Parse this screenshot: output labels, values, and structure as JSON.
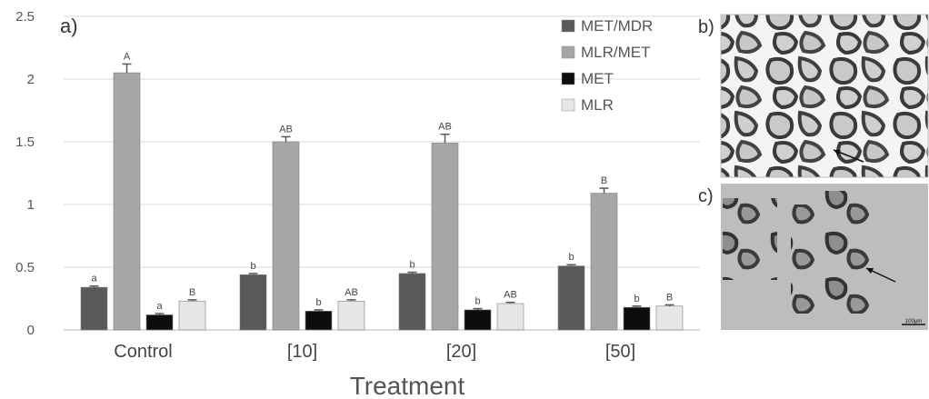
{
  "panels": {
    "a": "a)",
    "b": "b)",
    "c": "c)"
  },
  "micrograph": {
    "scale_bar": "100µm"
  },
  "chart_data": {
    "type": "bar",
    "title": "",
    "xlabel": "Treatment",
    "ylabel": "",
    "ylim": [
      0,
      2.5
    ],
    "yticks": [
      0,
      0.5,
      1,
      1.5,
      2,
      2.5
    ],
    "ytick_labels": [
      "0",
      "0.5",
      "1",
      "1.5",
      "2",
      "2.5"
    ],
    "grid": true,
    "legend_position": "top-right",
    "categories": [
      "Control",
      "[10]",
      "[20]",
      "[50]"
    ],
    "series": [
      {
        "name": "MET/MDR",
        "color": "#595959",
        "values": [
          0.34,
          0.44,
          0.45,
          0.51
        ],
        "errors": [
          0.01,
          0.01,
          0.01,
          0.01
        ],
        "sig": [
          "a",
          "b",
          "b",
          "b"
        ]
      },
      {
        "name": "MLR/MET",
        "color": "#a6a6a6",
        "values": [
          2.05,
          1.5,
          1.49,
          1.09
        ],
        "errors": [
          0.07,
          0.04,
          0.07,
          0.04
        ],
        "sig": [
          "A",
          "AB",
          "AB",
          "B"
        ]
      },
      {
        "name": "MET",
        "color": "#0d0d0d",
        "values": [
          0.12,
          0.15,
          0.16,
          0.18
        ],
        "errors": [
          0.01,
          0.01,
          0.01,
          0.01
        ],
        "sig": [
          "a",
          "b",
          "b",
          "b"
        ]
      },
      {
        "name": "MLR",
        "color": "#e6e6e6",
        "values": [
          0.23,
          0.23,
          0.21,
          0.19
        ],
        "errors": [
          0.01,
          0.01,
          0.01,
          0.01
        ],
        "sig": [
          "B",
          "AB",
          "AB",
          "B"
        ]
      }
    ]
  }
}
